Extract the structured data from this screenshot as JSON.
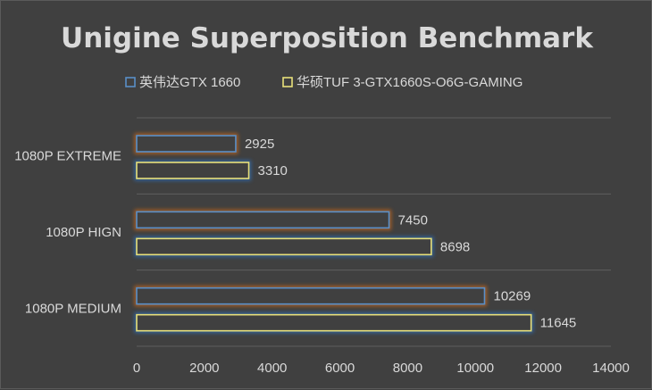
{
  "chart_data": {
    "type": "bar",
    "orientation": "horizontal",
    "title": "Unigine Superposition Benchmark",
    "categories": [
      "1080P EXTREME",
      "1080P HIGN",
      "1080P MEDIUM"
    ],
    "series": [
      {
        "name": "英伟达GTX 1660",
        "values": [
          2925,
          7450,
          10269
        ],
        "color": "#5a8fc8",
        "glow": "#c0651f"
      },
      {
        "name": "华硕TUF 3-GTX1660S-O6G-GAMING",
        "values": [
          3310,
          8698,
          11645
        ],
        "color": "#e8e07a",
        "glow": "#2e6cb0"
      }
    ],
    "xlim": [
      0,
      14000
    ],
    "xticks": [
      "0",
      "2000",
      "4000",
      "6000",
      "8000",
      "10000",
      "12000",
      "14000"
    ],
    "legend_position": "top",
    "grid": true,
    "background": "#404040"
  }
}
